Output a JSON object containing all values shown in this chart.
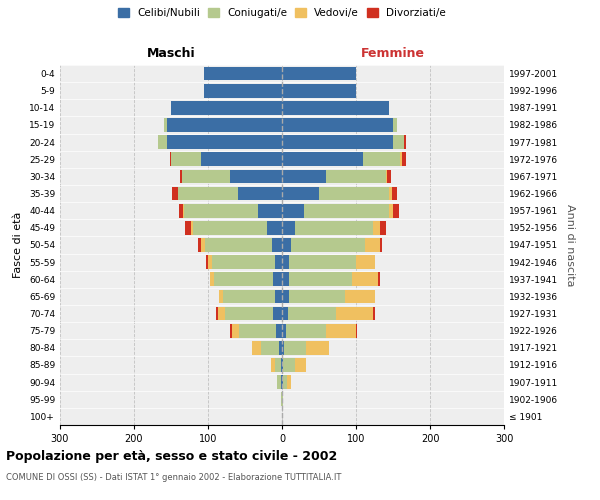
{
  "age_groups": [
    "100+",
    "95-99",
    "90-94",
    "85-89",
    "80-84",
    "75-79",
    "70-74",
    "65-69",
    "60-64",
    "55-59",
    "50-54",
    "45-49",
    "40-44",
    "35-39",
    "30-34",
    "25-29",
    "20-24",
    "15-19",
    "10-14",
    "5-9",
    "0-4"
  ],
  "birth_years": [
    "≤ 1901",
    "1902-1906",
    "1907-1911",
    "1912-1916",
    "1917-1921",
    "1922-1926",
    "1927-1931",
    "1932-1936",
    "1937-1941",
    "1942-1946",
    "1947-1951",
    "1952-1956",
    "1957-1961",
    "1962-1966",
    "1967-1971",
    "1972-1976",
    "1977-1981",
    "1982-1986",
    "1987-1991",
    "1992-1996",
    "1997-2001"
  ],
  "males": {
    "celibi": [
      0,
      0,
      2,
      2,
      4,
      8,
      12,
      10,
      12,
      10,
      14,
      20,
      32,
      60,
      70,
      110,
      155,
      155,
      150,
      105,
      105
    ],
    "coniugati": [
      0,
      1,
      5,
      8,
      25,
      50,
      65,
      70,
      80,
      85,
      90,
      100,
      100,
      80,
      65,
      40,
      12,
      5,
      0,
      0,
      0
    ],
    "vedovi": [
      0,
      0,
      0,
      5,
      12,
      10,
      10,
      5,
      5,
      5,
      5,
      3,
      2,
      0,
      0,
      0,
      0,
      0,
      0,
      0,
      0
    ],
    "divorziati": [
      0,
      0,
      0,
      0,
      0,
      2,
      2,
      0,
      0,
      3,
      5,
      8,
      5,
      8,
      3,
      2,
      1,
      0,
      0,
      0,
      0
    ]
  },
  "females": {
    "nubili": [
      0,
      0,
      2,
      2,
      3,
      5,
      8,
      10,
      10,
      10,
      12,
      18,
      30,
      50,
      60,
      110,
      150,
      150,
      145,
      100,
      100
    ],
    "coniugate": [
      0,
      1,
      5,
      15,
      30,
      55,
      65,
      75,
      85,
      90,
      100,
      105,
      115,
      95,
      80,
      50,
      15,
      5,
      0,
      0,
      0
    ],
    "vedove": [
      0,
      1,
      5,
      15,
      30,
      40,
      50,
      40,
      35,
      25,
      20,
      10,
      5,
      3,
      2,
      2,
      0,
      0,
      0,
      0,
      0
    ],
    "divorziate": [
      0,
      0,
      0,
      0,
      0,
      2,
      2,
      0,
      3,
      0,
      3,
      8,
      8,
      8,
      5,
      5,
      2,
      0,
      0,
      0,
      0
    ]
  },
  "colors": {
    "celibi": "#3b6ea5",
    "coniugati": "#b5c98e",
    "vedovi": "#f0c060",
    "divorziati": "#d03020"
  },
  "legend_labels": [
    "Celibi/Nubili",
    "Coniugati/e",
    "Vedovi/e",
    "Divorziati/e"
  ],
  "title": "Popolazione per età, sesso e stato civile - 2002",
  "subtitle": "COMUNE DI OSSI (SS) - Dati ISTAT 1° gennaio 2002 - Elaborazione TUTTITALIA.IT",
  "xlabel_left": "Maschi",
  "xlabel_right": "Femmine",
  "ylabel_left": "Fasce di età",
  "ylabel_right": "Anni di nascita",
  "xlim": 300,
  "background_color": "#ffffff",
  "grid_color": "#cccccc",
  "ax_bg": "#eeeeee"
}
